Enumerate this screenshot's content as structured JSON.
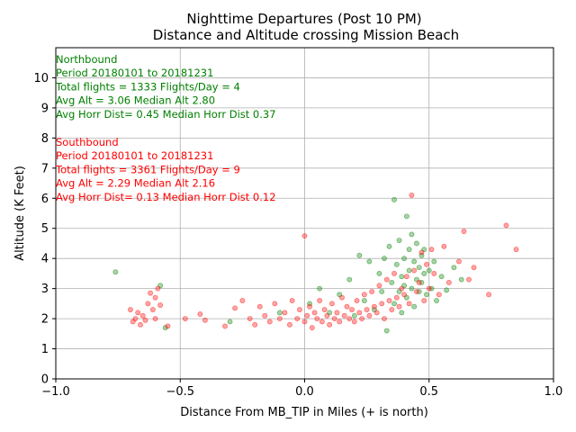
{
  "chart_data": {
    "type": "scatter",
    "title": "Nighttime Departures (Post 10 PM)",
    "subtitle": "Distance and Altitude crossing Mission Beach",
    "xlabel": "Distance From MB_TIP in Miles (+ is north)",
    "ylabel": "Altitude (K Feet)",
    "xlim": [
      -1.0,
      1.0
    ],
    "ylim": [
      0,
      11
    ],
    "x_ticks": [
      -1.0,
      -0.5,
      0.0,
      0.5,
      1.0
    ],
    "x_tick_labels": [
      "−1.0",
      "−0.5",
      "0.0",
      "0.5",
      "1.0"
    ],
    "y_ticks": [
      0,
      1,
      2,
      3,
      4,
      5,
      6,
      7,
      8,
      9,
      10
    ],
    "y_tick_labels": [
      "0",
      "1",
      "2",
      "3",
      "4",
      "5",
      "6",
      "7",
      "8",
      "9",
      "10"
    ],
    "grid": true,
    "series": [
      {
        "name": "Northbound",
        "color": "#008000",
        "points": [
          [
            -0.76,
            3.55
          ],
          [
            -0.58,
            3.1
          ],
          [
            -0.56,
            1.7
          ],
          [
            -0.3,
            1.9
          ],
          [
            -0.1,
            2.2
          ],
          [
            0.02,
            2.5
          ],
          [
            0.06,
            3.0
          ],
          [
            0.1,
            2.2
          ],
          [
            0.14,
            2.8
          ],
          [
            0.18,
            3.3
          ],
          [
            0.2,
            2.1
          ],
          [
            0.22,
            4.1
          ],
          [
            0.24,
            2.6
          ],
          [
            0.26,
            3.9
          ],
          [
            0.28,
            2.3
          ],
          [
            0.3,
            3.5
          ],
          [
            0.31,
            2.9
          ],
          [
            0.32,
            4.0
          ],
          [
            0.33,
            1.6
          ],
          [
            0.34,
            4.4
          ],
          [
            0.35,
            3.2
          ],
          [
            0.36,
            2.5
          ],
          [
            0.36,
            5.95
          ],
          [
            0.37,
            3.8
          ],
          [
            0.38,
            2.9
          ],
          [
            0.38,
            4.6
          ],
          [
            0.39,
            3.4
          ],
          [
            0.39,
            2.2
          ],
          [
            0.4,
            4.0
          ],
          [
            0.4,
            3.1
          ],
          [
            0.41,
            5.4
          ],
          [
            0.41,
            2.7
          ],
          [
            0.42,
            3.6
          ],
          [
            0.42,
            4.3
          ],
          [
            0.43,
            3.0
          ],
          [
            0.43,
            4.8
          ],
          [
            0.44,
            3.9
          ],
          [
            0.44,
            2.4
          ],
          [
            0.45,
            3.3
          ],
          [
            0.45,
            4.5
          ],
          [
            0.46,
            3.7
          ],
          [
            0.46,
            2.9
          ],
          [
            0.47,
            4.1
          ],
          [
            0.47,
            3.2
          ],
          [
            0.48,
            3.5
          ],
          [
            0.48,
            4.3
          ],
          [
            0.49,
            2.8
          ],
          [
            0.5,
            3.6
          ],
          [
            0.51,
            3.0
          ],
          [
            0.52,
            3.9
          ],
          [
            0.53,
            2.6
          ],
          [
            0.55,
            3.4
          ],
          [
            0.57,
            2.95
          ],
          [
            0.6,
            3.7
          ],
          [
            0.63,
            3.3
          ]
        ]
      },
      {
        "name": "Southbound",
        "color": "#ff0000",
        "points": [
          [
            -0.7,
            2.3
          ],
          [
            -0.69,
            1.9
          ],
          [
            -0.68,
            2.0
          ],
          [
            -0.67,
            2.2
          ],
          [
            -0.66,
            1.8
          ],
          [
            -0.65,
            2.1
          ],
          [
            -0.64,
            1.95
          ],
          [
            -0.63,
            2.5
          ],
          [
            -0.62,
            2.85
          ],
          [
            -0.61,
            2.3
          ],
          [
            -0.6,
            2.7
          ],
          [
            -0.6,
            2.0
          ],
          [
            -0.59,
            3.0
          ],
          [
            -0.58,
            2.45
          ],
          [
            -0.55,
            1.75
          ],
          [
            -0.48,
            2.0
          ],
          [
            -0.42,
            2.15
          ],
          [
            -0.4,
            1.95
          ],
          [
            -0.32,
            1.75
          ],
          [
            -0.28,
            2.35
          ],
          [
            -0.25,
            2.6
          ],
          [
            -0.22,
            2.0
          ],
          [
            -0.2,
            1.8
          ],
          [
            -0.18,
            2.4
          ],
          [
            -0.16,
            2.1
          ],
          [
            -0.14,
            1.9
          ],
          [
            -0.12,
            2.5
          ],
          [
            -0.1,
            2.0
          ],
          [
            -0.08,
            2.2
          ],
          [
            -0.06,
            1.8
          ],
          [
            -0.05,
            2.6
          ],
          [
            -0.03,
            2.0
          ],
          [
            -0.02,
            2.3
          ],
          [
            0.0,
            1.9
          ],
          [
            0.0,
            4.75
          ],
          [
            0.01,
            2.1
          ],
          [
            0.02,
            2.4
          ],
          [
            0.03,
            1.7
          ],
          [
            0.04,
            2.2
          ],
          [
            0.05,
            2.0
          ],
          [
            0.06,
            2.6
          ],
          [
            0.07,
            1.9
          ],
          [
            0.08,
            2.3
          ],
          [
            0.09,
            2.1
          ],
          [
            0.1,
            1.8
          ],
          [
            0.11,
            2.5
          ],
          [
            0.12,
            2.0
          ],
          [
            0.13,
            2.2
          ],
          [
            0.14,
            1.9
          ],
          [
            0.15,
            2.7
          ],
          [
            0.16,
            2.1
          ],
          [
            0.17,
            2.4
          ],
          [
            0.18,
            2.0
          ],
          [
            0.19,
            2.3
          ],
          [
            0.2,
            1.9
          ],
          [
            0.21,
            2.6
          ],
          [
            0.22,
            2.2
          ],
          [
            0.23,
            2.0
          ],
          [
            0.24,
            2.8
          ],
          [
            0.25,
            2.3
          ],
          [
            0.26,
            2.1
          ],
          [
            0.27,
            2.9
          ],
          [
            0.28,
            2.4
          ],
          [
            0.29,
            2.2
          ],
          [
            0.3,
            3.1
          ],
          [
            0.31,
            2.5
          ],
          [
            0.32,
            2.0
          ],
          [
            0.33,
            3.3
          ],
          [
            0.34,
            2.6
          ],
          [
            0.35,
            2.3
          ],
          [
            0.36,
            3.5
          ],
          [
            0.37,
            2.7
          ],
          [
            0.38,
            2.4
          ],
          [
            0.39,
            3.0
          ],
          [
            0.4,
            2.8
          ],
          [
            0.41,
            3.4
          ],
          [
            0.42,
            2.5
          ],
          [
            0.43,
            6.1
          ],
          [
            0.44,
            3.6
          ],
          [
            0.45,
            2.9
          ],
          [
            0.46,
            3.2
          ],
          [
            0.47,
            4.2
          ],
          [
            0.48,
            2.6
          ],
          [
            0.49,
            3.8
          ],
          [
            0.5,
            3.0
          ],
          [
            0.51,
            4.3
          ],
          [
            0.52,
            3.5
          ],
          [
            0.54,
            2.8
          ],
          [
            0.56,
            4.4
          ],
          [
            0.58,
            3.2
          ],
          [
            0.62,
            3.9
          ],
          [
            0.64,
            4.9
          ],
          [
            0.66,
            3.3
          ],
          [
            0.68,
            3.7
          ],
          [
            0.74,
            2.8
          ],
          [
            0.81,
            5.1
          ],
          [
            0.85,
            4.3
          ]
        ]
      }
    ],
    "annotations": {
      "northbound": {
        "color": "#008000",
        "lines": [
          "Northbound",
          "Period 20180101 to 20181231",
          "Total flights = 1333 Flights/Day = 4",
          "Avg Alt = 3.06 Median Alt 2.80",
          "Avg Horr Dist= 0.45 Median Horr Dist 0.37"
        ]
      },
      "southbound": {
        "color": "#ff0000",
        "lines": [
          "Southbound",
          "Period 20180101 to 20181231",
          "Total flights = 3361 Flights/Day = 9",
          "Avg Alt = 2.29 Median Alt 2.16",
          "Avg Horr Dist= 0.13 Median Horr Dist 0.12"
        ]
      }
    }
  }
}
